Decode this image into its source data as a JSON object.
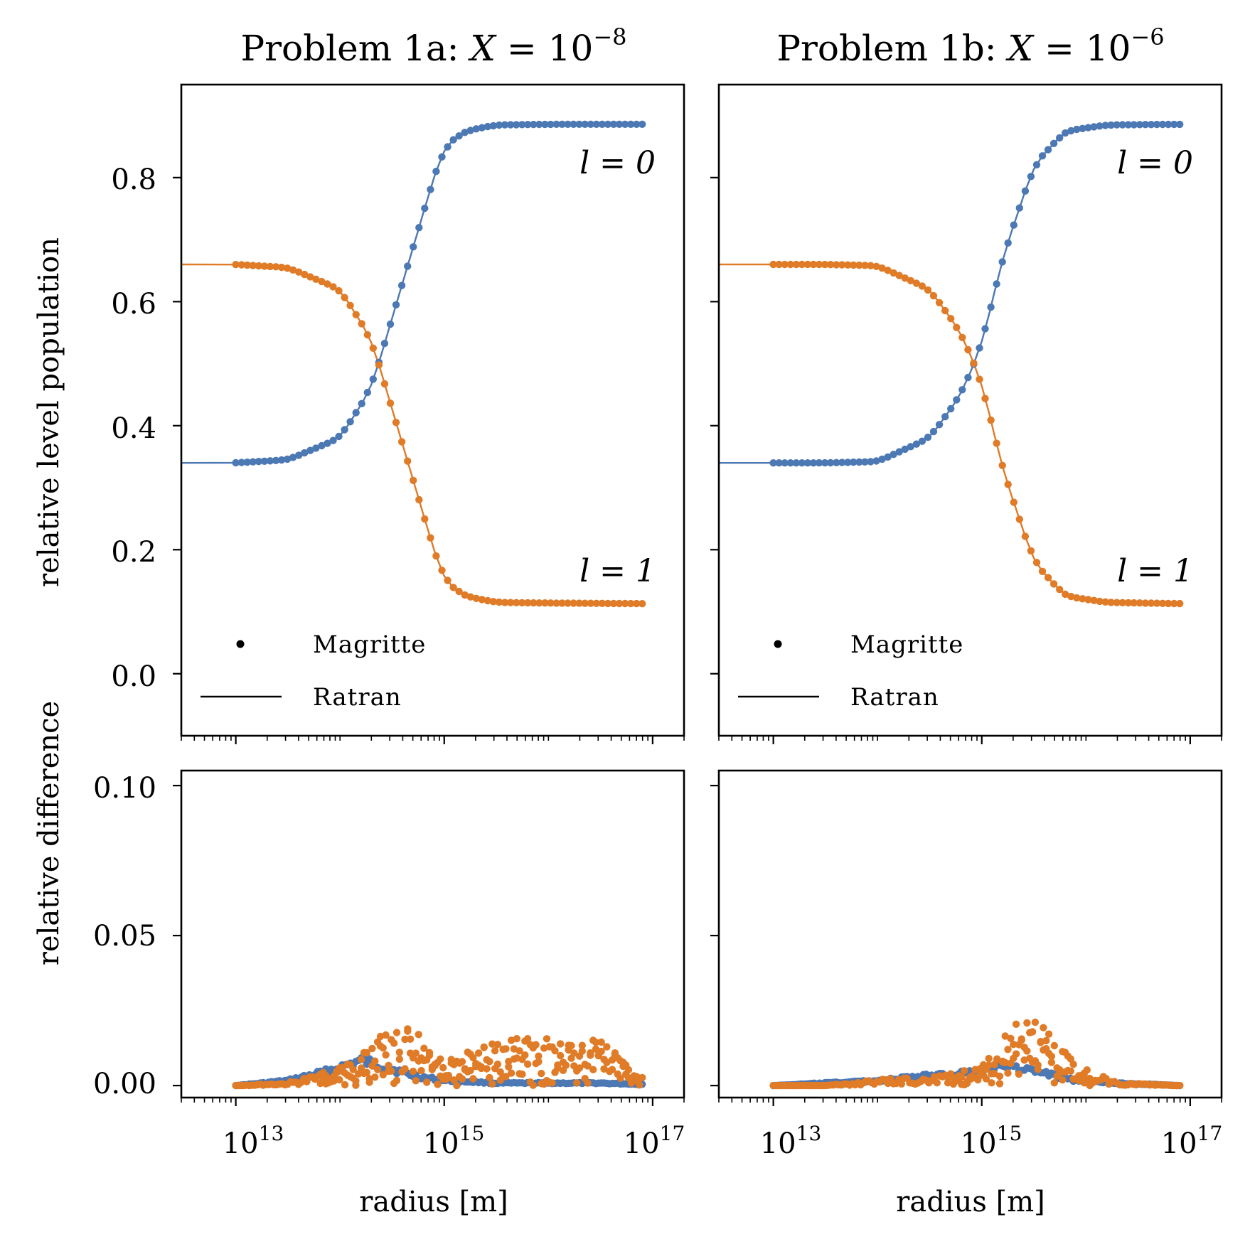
{
  "colors": {
    "blue": "#4c78b4",
    "orange": "#e07b27",
    "axis": "#000000"
  },
  "chart_data": {
    "type": "line",
    "xscale": "log",
    "xlabel": "radius [m]",
    "xlim": [
      3000000000000.0,
      2e+17
    ],
    "x_ticks": [
      "10^13",
      "10^15",
      "10^17"
    ],
    "x_tick_display": [
      {
        "base": "10",
        "exp": "13"
      },
      {
        "base": "10",
        "exp": "15"
      },
      {
        "base": "10",
        "exp": "17"
      }
    ],
    "legend": {
      "markers_label": "Magritte",
      "line_label": "Ratran",
      "placement": "lower-left"
    },
    "series_labels": {
      "l0": "l = 0",
      "l1": "l = 1"
    },
    "top_ylabel": "relative level population",
    "top_ylim": [
      -0.1,
      0.95
    ],
    "top_yticks": [
      "0.0",
      "0.2",
      "0.4",
      "0.6",
      "0.8"
    ],
    "bottom_ylabel": "relative difference",
    "bottom_ylim": [
      -0.004,
      0.105
    ],
    "bottom_yticks": [
      "0.00",
      "0.05",
      "0.10"
    ],
    "panels": [
      {
        "title": "Problem 1a: X = 10^-8",
        "title_parts": {
          "prefix": "Problem 1a: ",
          "var": "X",
          "eq": " = 10",
          "exp": "−8"
        },
        "level_population": {
          "log10r": [
            13.0,
            13.5,
            14.0,
            14.3,
            14.6,
            14.9,
            15.0,
            15.2,
            15.5,
            16.0,
            16.9
          ],
          "l0": [
            0.34,
            0.345,
            0.38,
            0.46,
            0.63,
            0.8,
            0.85,
            0.875,
            0.885,
            0.886,
            0.886
          ],
          "l1": [
            0.66,
            0.655,
            0.62,
            0.54,
            0.37,
            0.2,
            0.15,
            0.125,
            0.115,
            0.114,
            0.113
          ]
        },
        "relative_difference": {
          "log10r": [
            13.0,
            13.5,
            13.9,
            14.2,
            14.4,
            14.7,
            15.0,
            15.5,
            16.0,
            16.5,
            16.9
          ],
          "l0": [
            0.0,
            0.002,
            0.006,
            0.01,
            0.008,
            0.004,
            0.002,
            0.001,
            0.001,
            0.001,
            0.0005
          ],
          "l1": [
            0.0,
            0.001,
            0.005,
            0.01,
            0.02,
            0.021,
            0.008,
            0.015,
            0.017,
            0.015,
            0.004
          ]
        }
      },
      {
        "title": "Problem 1b: X = 10^-6",
        "title_parts": {
          "prefix": "Problem 1b: ",
          "var": "X",
          "eq": " = 10",
          "exp": "−6"
        },
        "level_population": {
          "log10r": [
            13.0,
            13.5,
            14.0,
            14.5,
            14.8,
            15.0,
            15.2,
            15.5,
            15.8,
            16.2,
            16.9
          ],
          "l0": [
            0.34,
            0.34,
            0.342,
            0.38,
            0.45,
            0.53,
            0.67,
            0.82,
            0.875,
            0.885,
            0.886
          ],
          "l1": [
            0.66,
            0.66,
            0.658,
            0.62,
            0.55,
            0.47,
            0.33,
            0.18,
            0.125,
            0.115,
            0.113
          ]
        },
        "relative_difference": {
          "log10r": [
            13.0,
            13.5,
            14.0,
            14.5,
            15.0,
            15.2,
            15.4,
            15.6,
            15.9,
            16.3,
            16.9
          ],
          "l0": [
            0.0,
            0.001,
            0.002,
            0.004,
            0.006,
            0.008,
            0.007,
            0.005,
            0.002,
            0.001,
            0.0
          ],
          "l1": [
            0.0,
            0.0,
            0.002,
            0.003,
            0.006,
            0.018,
            0.024,
            0.02,
            0.007,
            0.001,
            0.0
          ]
        }
      }
    ]
  }
}
